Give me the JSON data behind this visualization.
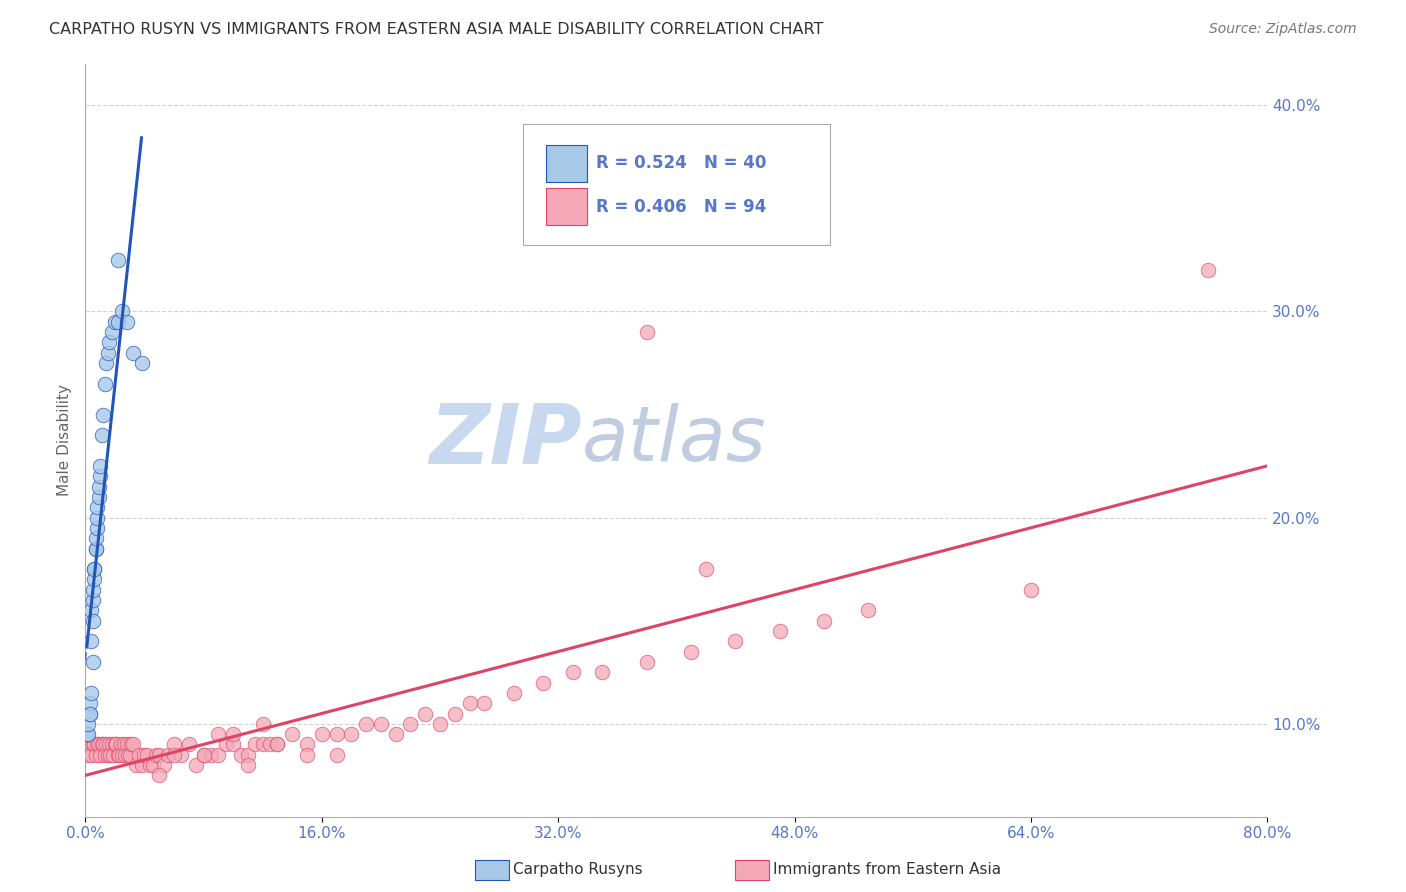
{
  "title": "CARPATHO RUSYN VS IMMIGRANTS FROM EASTERN ASIA MALE DISABILITY CORRELATION CHART",
  "source": "Source: ZipAtlas.com",
  "ylabel": "Male Disability",
  "legend_blue_r": "0.524",
  "legend_blue_n": "40",
  "legend_pink_r": "0.406",
  "legend_pink_n": "94",
  "legend_label_blue": "Carpatho Rusyns",
  "legend_label_pink": "Immigrants from Eastern Asia",
  "watermark_zip": "ZIP",
  "watermark_atlas": "atlas",
  "blue_scatter_x": [
    0.001,
    0.002,
    0.002,
    0.003,
    0.003,
    0.003,
    0.004,
    0.004,
    0.004,
    0.005,
    0.005,
    0.005,
    0.005,
    0.006,
    0.006,
    0.006,
    0.007,
    0.007,
    0.007,
    0.008,
    0.008,
    0.008,
    0.009,
    0.009,
    0.01,
    0.01,
    0.011,
    0.012,
    0.013,
    0.014,
    0.015,
    0.016,
    0.018,
    0.02,
    0.022,
    0.025,
    0.028,
    0.032,
    0.038,
    0.022
  ],
  "blue_scatter_y": [
    0.095,
    0.095,
    0.1,
    0.105,
    0.11,
    0.105,
    0.115,
    0.14,
    0.155,
    0.13,
    0.15,
    0.16,
    0.165,
    0.175,
    0.17,
    0.175,
    0.185,
    0.185,
    0.19,
    0.195,
    0.2,
    0.205,
    0.21,
    0.215,
    0.22,
    0.225,
    0.24,
    0.25,
    0.265,
    0.275,
    0.28,
    0.285,
    0.29,
    0.295,
    0.295,
    0.3,
    0.295,
    0.28,
    0.275,
    0.325
  ],
  "pink_scatter_x": [
    0.002,
    0.004,
    0.005,
    0.006,
    0.007,
    0.008,
    0.009,
    0.01,
    0.011,
    0.012,
    0.013,
    0.014,
    0.015,
    0.016,
    0.017,
    0.018,
    0.019,
    0.02,
    0.021,
    0.022,
    0.023,
    0.024,
    0.025,
    0.026,
    0.027,
    0.028,
    0.029,
    0.03,
    0.031,
    0.032,
    0.034,
    0.036,
    0.038,
    0.04,
    0.042,
    0.044,
    0.046,
    0.048,
    0.05,
    0.053,
    0.056,
    0.06,
    0.065,
    0.07,
    0.075,
    0.08,
    0.085,
    0.09,
    0.095,
    0.1,
    0.105,
    0.11,
    0.115,
    0.12,
    0.125,
    0.13,
    0.14,
    0.15,
    0.16,
    0.17,
    0.18,
    0.19,
    0.2,
    0.21,
    0.22,
    0.23,
    0.24,
    0.25,
    0.26,
    0.27,
    0.29,
    0.31,
    0.33,
    0.35,
    0.38,
    0.41,
    0.44,
    0.47,
    0.5,
    0.53,
    0.05,
    0.06,
    0.08,
    0.09,
    0.1,
    0.11,
    0.12,
    0.13,
    0.15,
    0.17,
    0.38,
    0.64,
    0.42,
    0.76
  ],
  "pink_scatter_y": [
    0.085,
    0.085,
    0.09,
    0.09,
    0.085,
    0.09,
    0.09,
    0.085,
    0.09,
    0.09,
    0.085,
    0.09,
    0.085,
    0.09,
    0.085,
    0.09,
    0.085,
    0.09,
    0.09,
    0.085,
    0.085,
    0.09,
    0.085,
    0.09,
    0.085,
    0.09,
    0.085,
    0.085,
    0.09,
    0.09,
    0.08,
    0.085,
    0.08,
    0.085,
    0.085,
    0.08,
    0.08,
    0.085,
    0.085,
    0.08,
    0.085,
    0.09,
    0.085,
    0.09,
    0.08,
    0.085,
    0.085,
    0.085,
    0.09,
    0.09,
    0.085,
    0.085,
    0.09,
    0.09,
    0.09,
    0.09,
    0.095,
    0.09,
    0.095,
    0.095,
    0.095,
    0.1,
    0.1,
    0.095,
    0.1,
    0.105,
    0.1,
    0.105,
    0.11,
    0.11,
    0.115,
    0.12,
    0.125,
    0.125,
    0.13,
    0.135,
    0.14,
    0.145,
    0.15,
    0.155,
    0.075,
    0.085,
    0.085,
    0.095,
    0.095,
    0.08,
    0.1,
    0.09,
    0.085,
    0.085,
    0.29,
    0.165,
    0.175,
    0.32
  ],
  "blue_color": "#a8c8e8",
  "pink_color": "#f4a8b8",
  "blue_line_color": "#2255bb",
  "pink_line_color": "#dd4466",
  "background_color": "#ffffff",
  "grid_color": "#cccccc",
  "title_color": "#333333",
  "tick_color": "#5577cc",
  "watermark_color_zip": "#c8d8ee",
  "watermark_color_atlas": "#c0cce0",
  "xlim": [
    0.0,
    0.8
  ],
  "ylim": [
    0.055,
    0.42
  ],
  "xtick_values": [
    0.0,
    0.16,
    0.32,
    0.48,
    0.64,
    0.8
  ],
  "ytick_values": [
    0.1,
    0.2,
    0.3,
    0.4
  ]
}
